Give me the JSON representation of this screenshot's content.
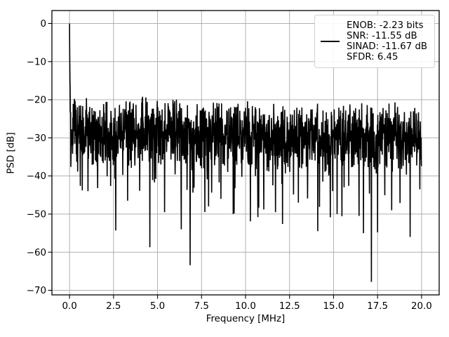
{
  "chart_data": {
    "type": "line",
    "title": "",
    "xlabel": "Frequency [MHz]",
    "ylabel": "PSD [dB]",
    "xlim": [
      -1,
      21
    ],
    "ylim": [
      -71.2,
      3.4
    ],
    "grid": true,
    "background_color": "#ffffff",
    "grid_color": "#b0b0b0",
    "spine_color": "#000000",
    "xtick_values": [
      0,
      2.5,
      5,
      7.5,
      10,
      12.5,
      15,
      17.5,
      20
    ],
    "xtick_labels": [
      "0.0",
      "2.5",
      "5.0",
      "7.5",
      "10.0",
      "12.5",
      "15.0",
      "17.5",
      "20.0"
    ],
    "ytick_values": [
      0,
      -10,
      -20,
      -30,
      -40,
      -50,
      -60,
      -70
    ],
    "ytick_labels": [
      "0",
      "−10",
      "−20",
      "−30",
      "−40",
      "−50",
      "−60",
      "−70"
    ],
    "legend": {
      "position": "upper right",
      "lines": [
        "ENOB: -2.23 bits",
        "SNR: -11.55 dB",
        "SINAD: -11.67 dB",
        "SFDR: 6.45"
      ],
      "handle_color": "#000000"
    },
    "metrics": {
      "enob_bits": -2.23,
      "snr_db": -11.55,
      "sinad_db": -11.67,
      "sfdr": 6.45
    },
    "series": [
      {
        "name": "PSD",
        "color": "#000000",
        "x_range_mhz": [
          0,
          20
        ],
        "n_points": 1600,
        "seed": 1337,
        "dc_peak": {
          "x": 0,
          "y_db": 0
        },
        "dc_skirt_db": [
          -8.5,
          -14.5,
          -17.5
        ],
        "noise_floor_top_db_start": -18.2,
        "noise_floor_top_db_end": -20.8,
        "noise_band_depth_db": 20,
        "deep_spike_probability": 0.045,
        "deep_spike_extra_db": [
          4,
          18
        ],
        "top_fringe_probability": 0.015,
        "top_fringe_extra_db": 1.8,
        "notable_minima": [
          [
            1.05,
            -44.0
          ],
          [
            1.6,
            -43.2
          ],
          [
            2.62,
            -54.3
          ],
          [
            3.3,
            -46.5
          ],
          [
            4.56,
            -58.7
          ],
          [
            5.4,
            -49.5
          ],
          [
            6.35,
            -54.0
          ],
          [
            6.85,
            -63.4
          ],
          [
            7.9,
            -48.0
          ],
          [
            8.6,
            -46.0
          ],
          [
            9.3,
            -50.0
          ],
          [
            10.7,
            -50.8
          ],
          [
            11.7,
            -49.5
          ],
          [
            12.1,
            -52.6
          ],
          [
            13.0,
            -47.0
          ],
          [
            14.1,
            -54.5
          ],
          [
            15.2,
            -50.0
          ],
          [
            16.7,
            -55.0
          ],
          [
            17.15,
            -67.8
          ],
          [
            17.5,
            -54.8
          ],
          [
            18.3,
            -49.0
          ],
          [
            19.35,
            -56.0
          ],
          [
            19.9,
            -43.5
          ]
        ]
      }
    ]
  }
}
